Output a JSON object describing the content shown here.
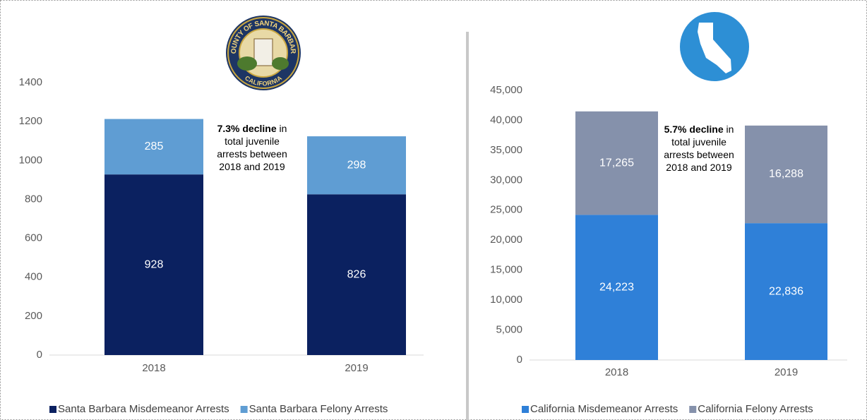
{
  "logos": {
    "county_top": "COUNTY OF SANTA BARBARA",
    "county_bottom": "CALIFORNIA"
  },
  "chart_data": [
    {
      "type": "stacked_bar",
      "categories": [
        "2018",
        "2019"
      ],
      "series": [
        {
          "name": "Santa Barbara Misdemeanor Arrests",
          "color": "#0b2160",
          "values": [
            928,
            826
          ]
        },
        {
          "name": "Santa Barbara Felony Arrests",
          "color": "#5f9dd3",
          "values": [
            285,
            298
          ]
        }
      ],
      "ylim": [
        0,
        1400
      ],
      "yticks": [
        0,
        200,
        400,
        600,
        800,
        1000,
        1200,
        1400
      ],
      "annotation": {
        "bold": "7.3% decline",
        "lines": [
          " in",
          "total juvenile",
          "arrests between",
          "2018 and 2019"
        ]
      }
    },
    {
      "type": "stacked_bar",
      "categories": [
        "2018",
        "2019"
      ],
      "series": [
        {
          "name": "California Misdemeanor Arrests",
          "color": "#2f80d8",
          "values": [
            24223,
            22836
          ],
          "value_labels": [
            "24,223",
            "22,836"
          ]
        },
        {
          "name": "California Felony Arrests",
          "color": "#8591ab",
          "values": [
            17265,
            16288
          ],
          "value_labels": [
            "17,265",
            "16,288"
          ]
        }
      ],
      "ylim": [
        0,
        45000
      ],
      "yticks": [
        0,
        {
          "value": 5000,
          "label": "5,000"
        },
        {
          "value": 10000,
          "label": "10,000"
        },
        {
          "value": 15000,
          "label": "15,000"
        },
        {
          "value": 20000,
          "label": "20,000"
        },
        {
          "value": 25000,
          "label": "25,000"
        },
        {
          "value": 30000,
          "label": "30,000"
        },
        {
          "value": 35000,
          "label": "35,000"
        },
        {
          "value": 40000,
          "label": "40,000"
        },
        {
          "value": 45000,
          "label": "45,000"
        }
      ],
      "annotation": {
        "bold": "5.7% decline",
        "lines": [
          " in",
          "total juvenile",
          "arrests between",
          "2018 and 2019"
        ]
      }
    }
  ]
}
